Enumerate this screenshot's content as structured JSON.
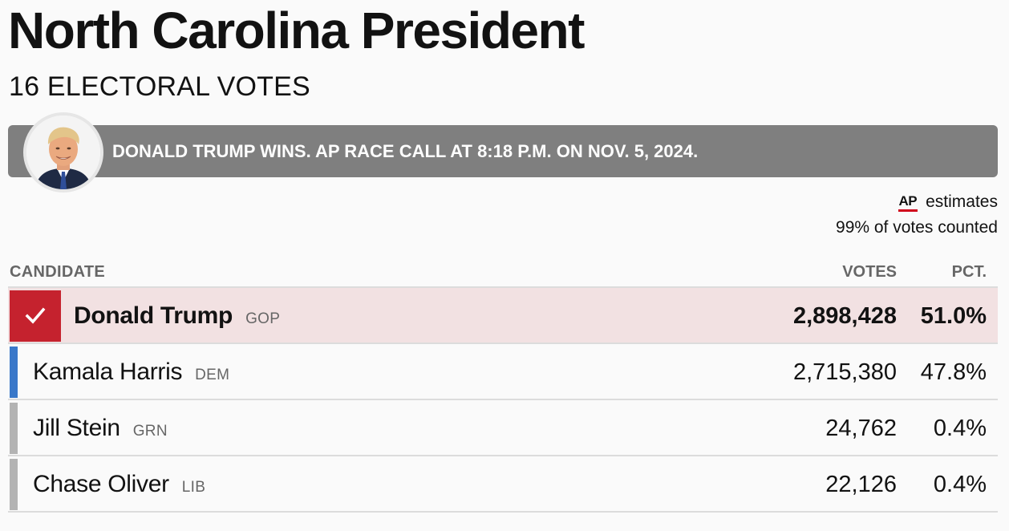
{
  "header": {
    "title": "North Carolina President",
    "subtitle": "16 ELECTORAL VOTES"
  },
  "banner": {
    "text": "DONALD TRUMP WINS. AP RACE CALL AT 8:18 P.M. ON NOV. 5, 2024."
  },
  "estimates": {
    "ap_logo": "AP",
    "label": "estimates",
    "counted": "99% of votes counted"
  },
  "table": {
    "headers": {
      "candidate": "CANDIDATE",
      "votes": "VOTES",
      "pct": "PCT."
    },
    "rows": [
      {
        "name": "Donald Trump",
        "party": "GOP",
        "votes": "2,898,428",
        "pct": "51.0%",
        "winner": true,
        "color": "#c5222e"
      },
      {
        "name": "Kamala Harris",
        "party": "DEM",
        "votes": "2,715,380",
        "pct": "47.8%",
        "winner": false,
        "color": "#3a78c9"
      },
      {
        "name": "Jill Stein",
        "party": "GRN",
        "votes": "24,762",
        "pct": "0.4%",
        "winner": false,
        "color": "#b3b3b3"
      },
      {
        "name": "Chase Oliver",
        "party": "LIB",
        "votes": "22,126",
        "pct": "0.4%",
        "winner": false,
        "color": "#b3b3b3"
      }
    ]
  },
  "colors": {
    "banner_bg": "#7f7f7f",
    "winner_row_bg": "#f2e1e2",
    "gop": "#c5222e",
    "dem": "#3a78c9",
    "other": "#b3b3b3"
  },
  "icons": {
    "winner_check": "check-icon",
    "avatar": "candidate-photo"
  }
}
